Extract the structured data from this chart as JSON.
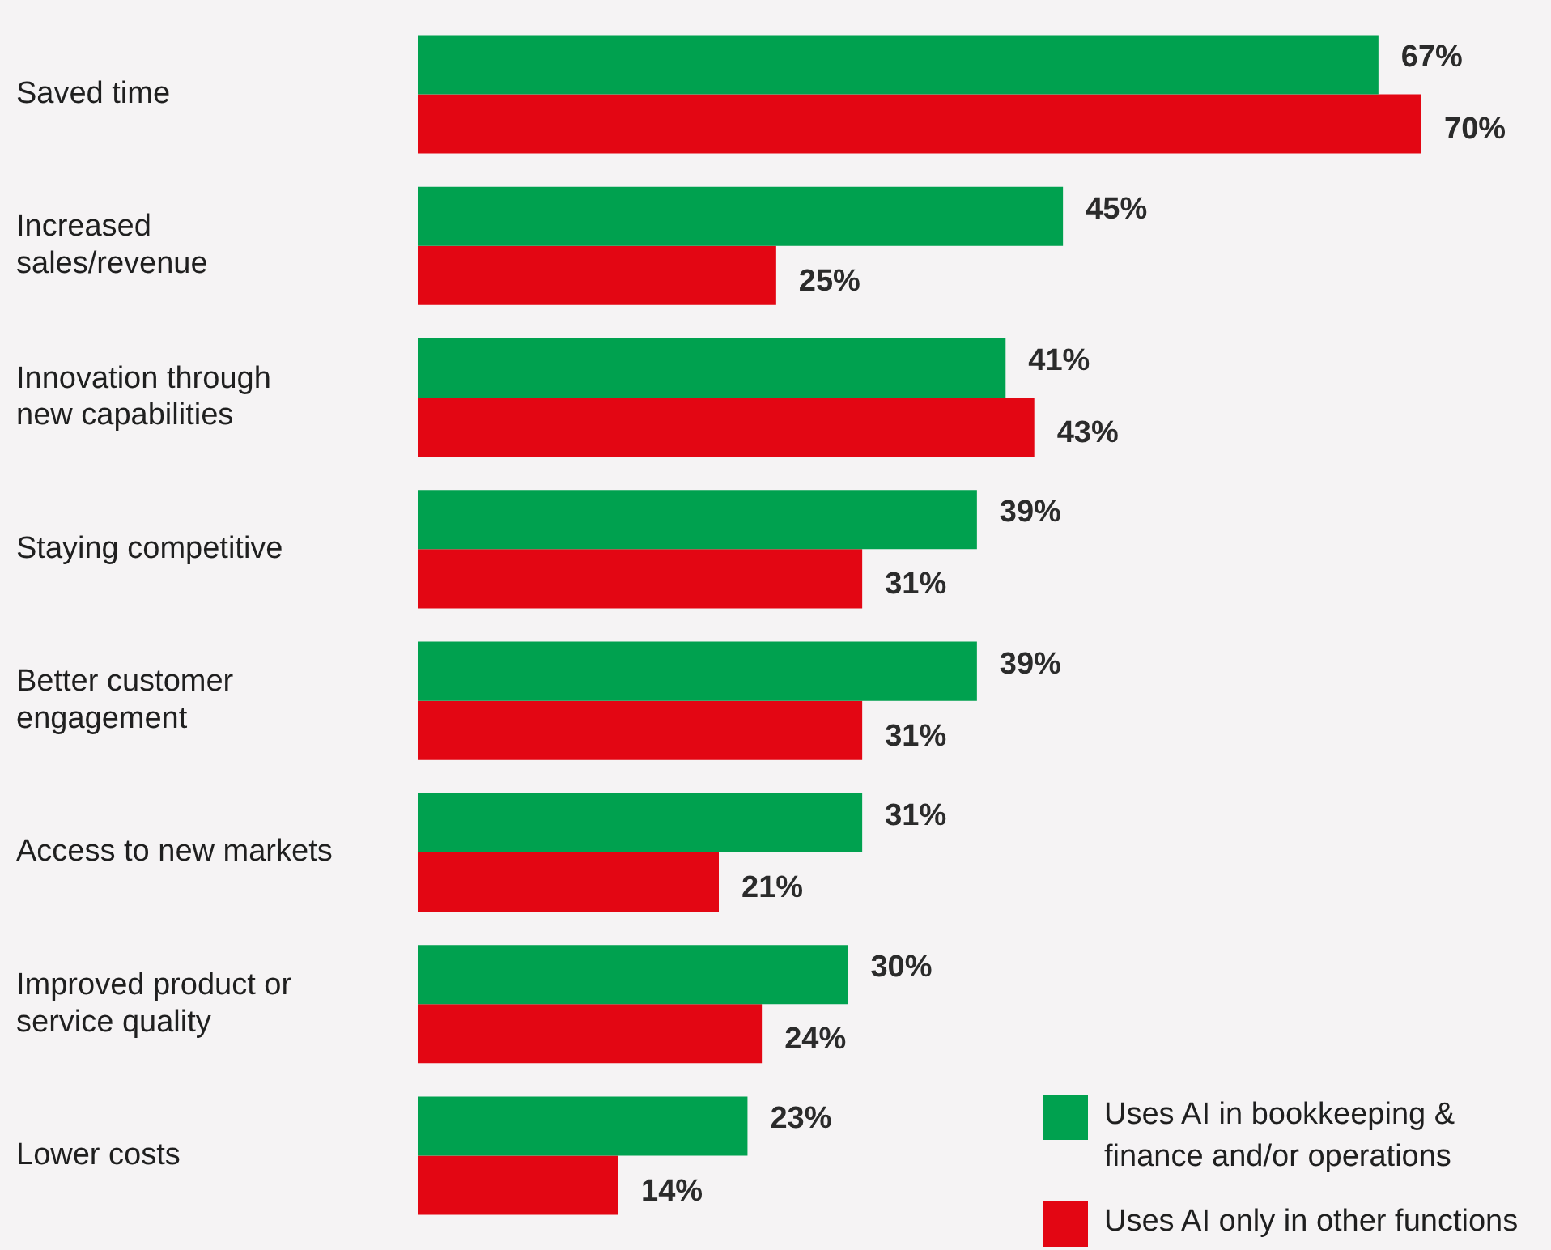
{
  "chart_data": {
    "type": "bar",
    "orientation": "horizontal",
    "categories": [
      "Saved time",
      "Increased sales/revenue",
      "Innovation through new capabilities",
      "Staying competitive",
      "Better customer engagement",
      "Access to new markets",
      "Improved product or service quality",
      "Lower costs"
    ],
    "series": [
      {
        "name": "Uses AI in bookkeeping & finance and/or operations",
        "color": "#00a14f",
        "values": [
          67,
          45,
          41,
          39,
          39,
          31,
          30,
          23
        ],
        "value_labels": [
          "67%",
          "45%",
          "41%",
          "39%",
          "39%",
          "31%",
          "30%",
          "23%"
        ]
      },
      {
        "name": "Uses AI only in other functions",
        "color": "#e30613",
        "values": [
          70,
          25,
          43,
          31,
          31,
          21,
          24,
          14
        ],
        "value_labels": [
          "70%",
          "25%",
          "43%",
          "31%",
          "31%",
          "21%",
          "24%",
          "14%"
        ]
      }
    ],
    "legend": "bottom right"
  }
}
